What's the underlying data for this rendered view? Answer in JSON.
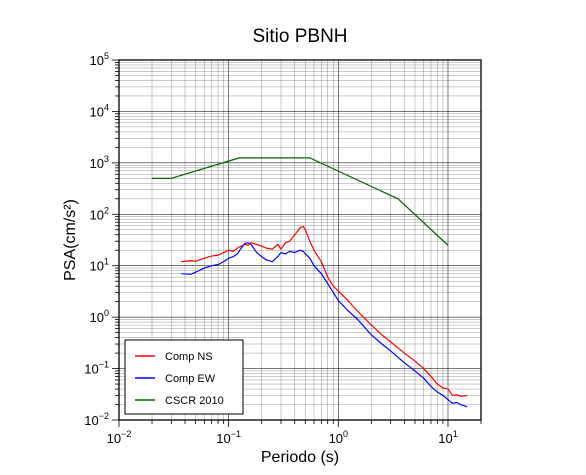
{
  "chart_data": {
    "type": "line",
    "title": "Sitio PBNH",
    "xlabel": "Periodo (s)",
    "ylabel": "PSA(cm/s²)",
    "xscale": "log",
    "yscale": "log",
    "xlim": [
      0.01,
      20
    ],
    "ylim": [
      0.01,
      100000
    ],
    "grid": true,
    "legend_position": "bottom-left",
    "x_ticks": [
      {
        "value": 0.01,
        "base": "10",
        "exp": "−2"
      },
      {
        "value": 0.1,
        "base": "10",
        "exp": "−1"
      },
      {
        "value": 1,
        "base": "10",
        "exp": "0"
      },
      {
        "value": 10,
        "base": "10",
        "exp": "1"
      }
    ],
    "y_ticks": [
      {
        "value": 0.01,
        "base": "10",
        "exp": "−2"
      },
      {
        "value": 0.1,
        "base": "10",
        "exp": "−1"
      },
      {
        "value": 1,
        "base": "10",
        "exp": "0"
      },
      {
        "value": 10,
        "base": "10",
        "exp": "1"
      },
      {
        "value": 100,
        "base": "10",
        "exp": "2"
      },
      {
        "value": 1000,
        "base": "10",
        "exp": "3"
      },
      {
        "value": 10000,
        "base": "10",
        "exp": "4"
      },
      {
        "value": 100000,
        "base": "10",
        "exp": "5"
      }
    ],
    "series": [
      {
        "name": "Comp NS",
        "color": "#ff0000",
        "points": [
          [
            0.037,
            12
          ],
          [
            0.045,
            12.5
          ],
          [
            0.05,
            12.2
          ],
          [
            0.06,
            14
          ],
          [
            0.07,
            15.5
          ],
          [
            0.08,
            16
          ],
          [
            0.09,
            18
          ],
          [
            0.1,
            20
          ],
          [
            0.11,
            19
          ],
          [
            0.12,
            22
          ],
          [
            0.13,
            24
          ],
          [
            0.14,
            26
          ],
          [
            0.15,
            25
          ],
          [
            0.16,
            28
          ],
          [
            0.18,
            26
          ],
          [
            0.2,
            24
          ],
          [
            0.22,
            22
          ],
          [
            0.25,
            21
          ],
          [
            0.28,
            26
          ],
          [
            0.3,
            21
          ],
          [
            0.33,
            28
          ],
          [
            0.36,
            30
          ],
          [
            0.4,
            40
          ],
          [
            0.45,
            55
          ],
          [
            0.48,
            58
          ],
          [
            0.5,
            50
          ],
          [
            0.55,
            30
          ],
          [
            0.6,
            20
          ],
          [
            0.7,
            12
          ],
          [
            0.8,
            6
          ],
          [
            0.9,
            4
          ],
          [
            1.0,
            3.2
          ],
          [
            1.2,
            2.2
          ],
          [
            1.5,
            1.3
          ],
          [
            2.0,
            0.7
          ],
          [
            2.5,
            0.45
          ],
          [
            3.0,
            0.33
          ],
          [
            4.0,
            0.2
          ],
          [
            5.0,
            0.14
          ],
          [
            6.0,
            0.1
          ],
          [
            7.0,
            0.07
          ],
          [
            8.0,
            0.05
          ],
          [
            9.0,
            0.042
          ],
          [
            10.0,
            0.04
          ],
          [
            11.0,
            0.03
          ],
          [
            12.0,
            0.031
          ],
          [
            13.0,
            0.029
          ],
          [
            15.0,
            0.03
          ]
        ]
      },
      {
        "name": "Comp EW",
        "color": "#0000ff",
        "points": [
          [
            0.037,
            7
          ],
          [
            0.045,
            6.8
          ],
          [
            0.05,
            7.5
          ],
          [
            0.06,
            9
          ],
          [
            0.07,
            10
          ],
          [
            0.08,
            10.5
          ],
          [
            0.09,
            12
          ],
          [
            0.1,
            14
          ],
          [
            0.11,
            15
          ],
          [
            0.12,
            17
          ],
          [
            0.13,
            22
          ],
          [
            0.14,
            27
          ],
          [
            0.15,
            28
          ],
          [
            0.16,
            26
          ],
          [
            0.18,
            18
          ],
          [
            0.2,
            15
          ],
          [
            0.22,
            13
          ],
          [
            0.25,
            12
          ],
          [
            0.28,
            15
          ],
          [
            0.3,
            18
          ],
          [
            0.33,
            17
          ],
          [
            0.36,
            19
          ],
          [
            0.4,
            18
          ],
          [
            0.45,
            20
          ],
          [
            0.48,
            19
          ],
          [
            0.5,
            17
          ],
          [
            0.55,
            14
          ],
          [
            0.6,
            10
          ],
          [
            0.7,
            7
          ],
          [
            0.8,
            4.5
          ],
          [
            0.9,
            3
          ],
          [
            1.0,
            2.1
          ],
          [
            1.2,
            1.4
          ],
          [
            1.5,
            0.9
          ],
          [
            2.0,
            0.45
          ],
          [
            2.5,
            0.3
          ],
          [
            3.0,
            0.22
          ],
          [
            4.0,
            0.13
          ],
          [
            5.0,
            0.09
          ],
          [
            6.0,
            0.065
          ],
          [
            7.0,
            0.045
          ],
          [
            8.0,
            0.035
          ],
          [
            9.0,
            0.03
          ],
          [
            10.0,
            0.025
          ],
          [
            11.0,
            0.021
          ],
          [
            12.0,
            0.022
          ],
          [
            13.0,
            0.02
          ],
          [
            15.0,
            0.018
          ]
        ]
      },
      {
        "name": "CSCR 2010",
        "color": "#006400",
        "points": [
          [
            0.02,
            500
          ],
          [
            0.03,
            500
          ],
          [
            0.125,
            1250
          ],
          [
            0.55,
            1250
          ],
          [
            3.5,
            200
          ],
          [
            10,
            25
          ]
        ]
      }
    ]
  }
}
